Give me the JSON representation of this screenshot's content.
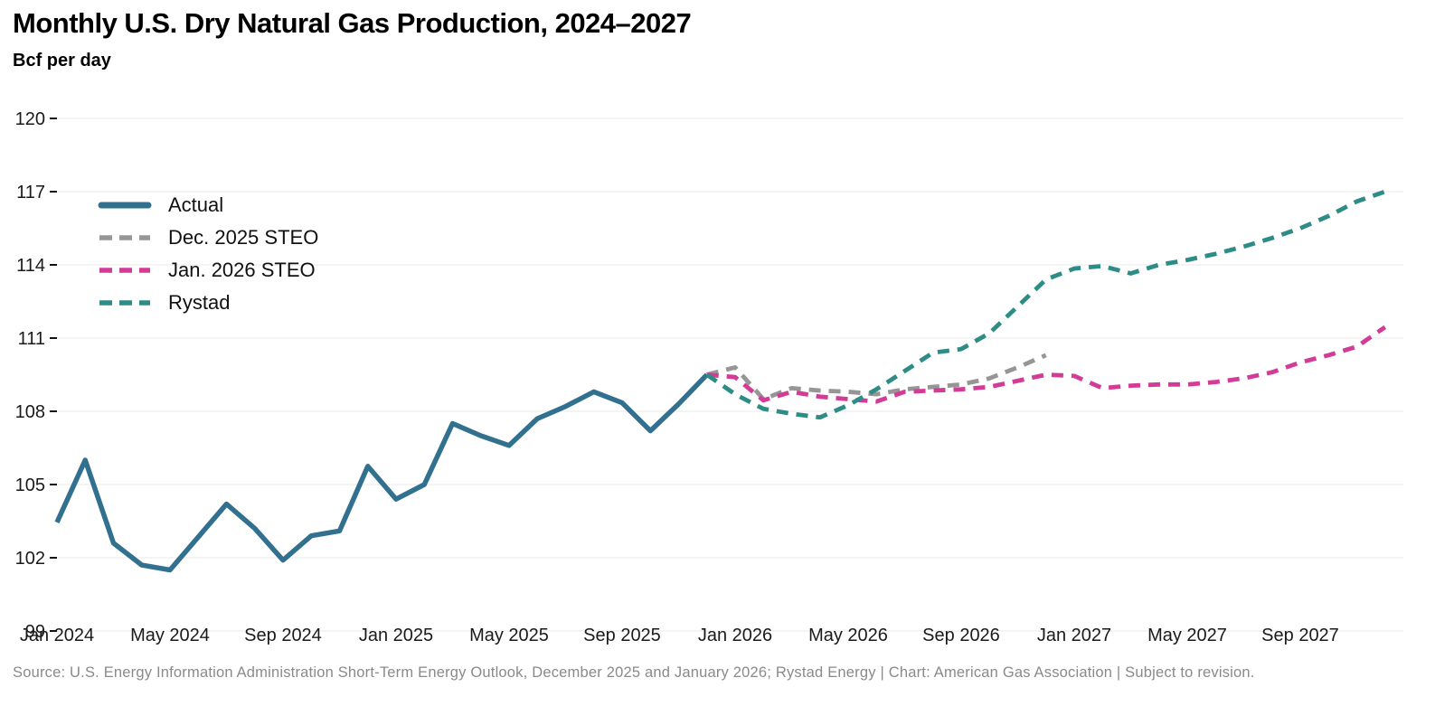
{
  "header": {
    "title": "Monthly U.S. Dry Natural Gas Production, 2024–2027",
    "subtitle": "Bcf per day"
  },
  "footer": {
    "source": "Source: U.S. Energy Information Administration Short-Term Energy Outlook, December 2025 and January 2026; Rystad Energy | Chart: American Gas Association | Subject to revision."
  },
  "chart_data": {
    "type": "line",
    "title": "Monthly U.S. Dry Natural Gas Production, 2024–2027",
    "ylabel": "Bcf per day",
    "xlabel": "",
    "ylim": [
      99,
      120
    ],
    "y_ticks": [
      99,
      102,
      105,
      108,
      111,
      114,
      117,
      120
    ],
    "grid": true,
    "legend_position": "upper-left-inside",
    "x_domain_months": [
      "Jan 2024",
      "Dec 2027"
    ],
    "x_ticks": [
      {
        "label": "Jan 2024",
        "m": 0
      },
      {
        "label": "May 2024",
        "m": 4
      },
      {
        "label": "Sep 2024",
        "m": 8
      },
      {
        "label": "Jan 2025",
        "m": 12
      },
      {
        "label": "May 2025",
        "m": 16
      },
      {
        "label": "Sep 2025",
        "m": 20
      },
      {
        "label": "Jan 2026",
        "m": 24
      },
      {
        "label": "May 2026",
        "m": 28
      },
      {
        "label": "Sep 2026",
        "m": 32
      },
      {
        "label": "Jan 2027",
        "m": 36
      },
      {
        "label": "May 2027",
        "m": 40
      },
      {
        "label": "Sep 2027",
        "m": 44
      }
    ],
    "series": [
      {
        "name": "Actual",
        "color": "#31708E",
        "style": "solid",
        "start_month": "Jan 2024",
        "start_index": 0,
        "values": [
          103.45,
          106.0,
          102.6,
          101.7,
          101.5,
          102.85,
          104.2,
          103.2,
          101.9,
          102.9,
          103.1,
          105.75,
          104.4,
          105.0,
          107.5,
          107.0,
          106.6,
          107.7,
          108.2,
          108.8,
          108.35,
          107.2,
          108.3,
          109.5
        ]
      },
      {
        "name": "Dec. 2025 STEO",
        "color": "#969696",
        "style": "dashed",
        "start_month": "Dec 2025",
        "start_index": 23,
        "values": [
          109.5,
          109.8,
          108.5,
          108.95,
          108.85,
          108.8,
          108.7,
          108.9,
          109.0,
          109.1,
          109.35,
          109.8,
          110.3
        ]
      },
      {
        "name": "Jan. 2026 STEO",
        "color": "#D23C96",
        "style": "dashed",
        "start_month": "Dec 2025",
        "start_index": 23,
        "values": [
          109.5,
          109.4,
          108.45,
          108.8,
          108.6,
          108.5,
          108.4,
          108.8,
          108.85,
          108.9,
          109.0,
          109.25,
          109.5,
          109.45,
          108.95,
          109.05,
          109.1,
          109.1,
          109.2,
          109.35,
          109.6,
          110.0,
          110.3,
          110.65,
          111.45
        ]
      },
      {
        "name": "Rystad",
        "color": "#2E8C86",
        "style": "dashed",
        "start_month": "Dec 2025",
        "start_index": 23,
        "values": [
          109.5,
          108.7,
          108.1,
          107.9,
          107.75,
          108.25,
          108.9,
          109.65,
          110.4,
          110.55,
          111.2,
          112.3,
          113.4,
          113.85,
          113.95,
          113.65,
          114.0,
          114.2,
          114.45,
          114.75,
          115.1,
          115.5,
          116.0,
          116.6,
          117.0
        ]
      }
    ]
  }
}
